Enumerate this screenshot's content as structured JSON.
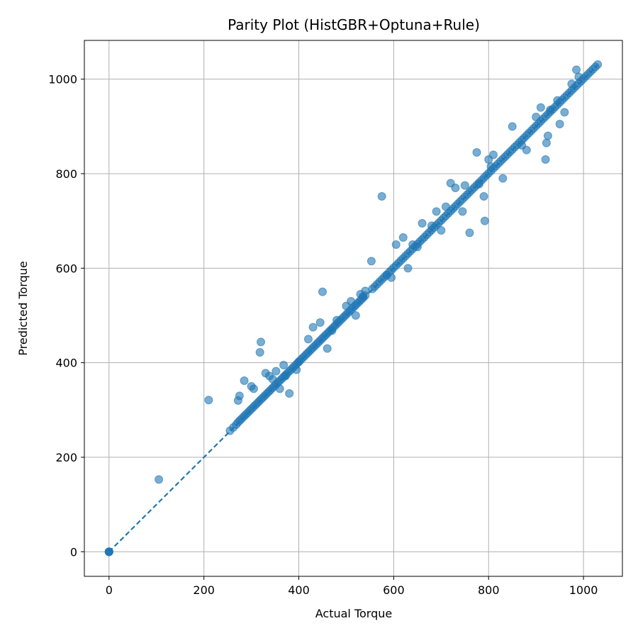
{
  "chart_data": {
    "type": "scatter",
    "title": "Parity Plot (HistGBR+Optuna+Rule)",
    "xlabel": "Actual Torque",
    "ylabel": "Predicted Torque",
    "xlim": [
      -52,
      1082
    ],
    "ylim": [
      -52,
      1082
    ],
    "xticks": [
      0,
      200,
      400,
      600,
      800,
      1000
    ],
    "yticks": [
      0,
      200,
      400,
      600,
      800,
      1000
    ],
    "grid": true,
    "point_color": "#1f77b4",
    "reference_line": {
      "from": [
        0,
        0
      ],
      "to": [
        1030,
        1030
      ],
      "style": "dashed",
      "color": "#1f77b4"
    },
    "series": [
      {
        "x": [
          0,
          0,
          0,
          0,
          0,
          105,
          210,
          255,
          262,
          268,
          272,
          276,
          280,
          284,
          288,
          292,
          296,
          300,
          304,
          308,
          312,
          316,
          320,
          324,
          328,
          332,
          336,
          340,
          344,
          348,
          352,
          356,
          360,
          364,
          368,
          372,
          376,
          380,
          384,
          388,
          392,
          396,
          400,
          404,
          408,
          412,
          416,
          420,
          424,
          428,
          432,
          436,
          440,
          444,
          448,
          452,
          456,
          460,
          464,
          468,
          472,
          476,
          480,
          484,
          488,
          492,
          496,
          500,
          504,
          508,
          512,
          516,
          520,
          524,
          528,
          532,
          536,
          540,
          555,
          560,
          565,
          570,
          575,
          580,
          585,
          590,
          595,
          600,
          605,
          610,
          615,
          620,
          625,
          630,
          635,
          640,
          645,
          650,
          655,
          660,
          665,
          670,
          675,
          680,
          685,
          690,
          695,
          700,
          705,
          710,
          715,
          720,
          725,
          730,
          735,
          740,
          745,
          750,
          755,
          760,
          765,
          770,
          775,
          780,
          785,
          790,
          795,
          800,
          805,
          810,
          815,
          820,
          825,
          830,
          835,
          840,
          845,
          850,
          855,
          860,
          865,
          870,
          875,
          880,
          885,
          890,
          895,
          900,
          905,
          910,
          915,
          920,
          925,
          930,
          935,
          940,
          945,
          950,
          955,
          960,
          965,
          970,
          975,
          980,
          985,
          990,
          995,
          1000,
          1005,
          1010,
          1015,
          1020,
          1025,
          1030,
          272,
          275,
          285,
          300,
          305,
          318,
          320,
          330,
          338,
          345,
          352,
          360,
          368,
          372,
          380,
          395,
          400,
          420,
          430,
          445,
          450,
          460,
          470,
          480,
          500,
          510,
          520,
          530,
          535,
          540,
          553,
          575,
          585,
          595,
          605,
          620,
          630,
          640,
          650,
          660,
          680,
          690,
          700,
          710,
          720,
          730,
          745,
          750,
          760,
          775,
          780,
          790,
          792,
          800,
          805,
          810,
          830,
          850,
          870,
          880,
          900,
          910,
          920,
          922,
          925,
          930,
          945,
          950,
          960,
          975,
          985,
          990
        ],
        "y": [
          0,
          0,
          0,
          0,
          0,
          153,
          321,
          256,
          263,
          269,
          274,
          278,
          282,
          286,
          290,
          294,
          298,
          302,
          306,
          310,
          314,
          318,
          322,
          326,
          330,
          334,
          338,
          342,
          346,
          350,
          354,
          358,
          362,
          366,
          370,
          374,
          378,
          382,
          386,
          390,
          394,
          398,
          402,
          406,
          410,
          414,
          418,
          422,
          426,
          430,
          434,
          438,
          442,
          446,
          450,
          454,
          458,
          462,
          466,
          470,
          474,
          478,
          482,
          486,
          490,
          494,
          498,
          502,
          506,
          510,
          514,
          518,
          522,
          526,
          530,
          534,
          538,
          542,
          556,
          561,
          566,
          571,
          576,
          581,
          586,
          591,
          596,
          601,
          606,
          611,
          616,
          621,
          626,
          631,
          636,
          641,
          646,
          651,
          656,
          661,
          666,
          671,
          676,
          681,
          686,
          691,
          696,
          701,
          706,
          711,
          716,
          721,
          726,
          731,
          736,
          741,
          746,
          751,
          756,
          761,
          766,
          771,
          776,
          781,
          786,
          791,
          796,
          801,
          806,
          811,
          816,
          821,
          826,
          831,
          836,
          841,
          846,
          851,
          856,
          861,
          866,
          871,
          876,
          881,
          886,
          891,
          896,
          901,
          906,
          911,
          916,
          921,
          926,
          931,
          936,
          941,
          946,
          951,
          956,
          961,
          966,
          971,
          976,
          981,
          986,
          991,
          996,
          1001,
          1006,
          1011,
          1016,
          1021,
          1026,
          1031,
          320,
          330,
          362,
          350,
          345,
          422,
          444,
          378,
          372,
          365,
          382,
          345,
          395,
          372,
          335,
          385,
          402,
          450,
          475,
          485,
          550,
          430,
          468,
          490,
          520,
          530,
          500,
          545,
          540,
          552,
          615,
          752,
          585,
          580,
          650,
          665,
          600,
          650,
          645,
          695,
          690,
          720,
          680,
          730,
          780,
          770,
          720,
          775,
          675,
          845,
          778,
          752,
          700,
          830,
          815,
          840,
          790,
          900,
          860,
          850,
          920,
          940,
          830,
          865,
          880,
          935,
          955,
          905,
          930,
          990,
          1020,
          1005
        ]
      }
    ]
  }
}
